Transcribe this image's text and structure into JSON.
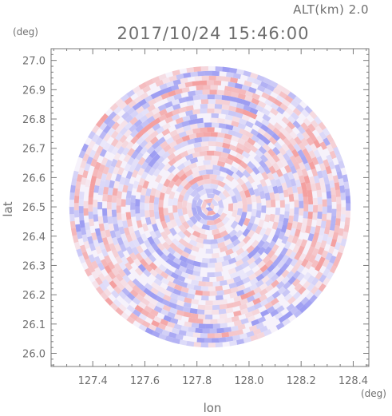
{
  "header": {
    "altitude_label": "ALT(km)  2.0",
    "timestamp": "2017/10/24 15:46:00"
  },
  "chart_data": {
    "type": "heatmap",
    "title": "2017/10/24 15:46:00",
    "annotation": "ALT(km)  2.0",
    "xlabel": "lon",
    "ylabel": "lat",
    "x_unit": "(deg)",
    "y_unit": "(deg)",
    "xlim": [
      127.24,
      128.46
    ],
    "ylim": [
      25.955,
      27.04
    ],
    "x_ticks": [
      127.4,
      127.6,
      127.8,
      128.0,
      128.2,
      128.4
    ],
    "x_tick_labels": [
      "127.4",
      "127.6",
      "127.8",
      "128.0",
      "128.2",
      "128.4"
    ],
    "y_ticks": [
      26.0,
      26.1,
      26.2,
      26.3,
      26.4,
      26.5,
      26.6,
      26.7,
      26.8,
      26.9,
      27.0
    ],
    "y_tick_labels": [
      "26.0",
      "26.1",
      "26.2",
      "26.3",
      "26.4",
      "26.5",
      "26.6",
      "26.7",
      "26.8",
      "26.9",
      "27.0"
    ],
    "field": {
      "shape": "circular radar scan",
      "center_lon": 127.85,
      "center_lat": 26.5,
      "radius_deg": 0.54,
      "pattern": "noisy alternating positive/negative cells arranged in range rings",
      "value_range": [
        -1,
        1
      ],
      "colormap": {
        "negative": "#9d9df2",
        "zero": "#f6f2fb",
        "positive": "#f4a0a0"
      },
      "grid": false
    },
    "grid": false,
    "legend": "none"
  }
}
